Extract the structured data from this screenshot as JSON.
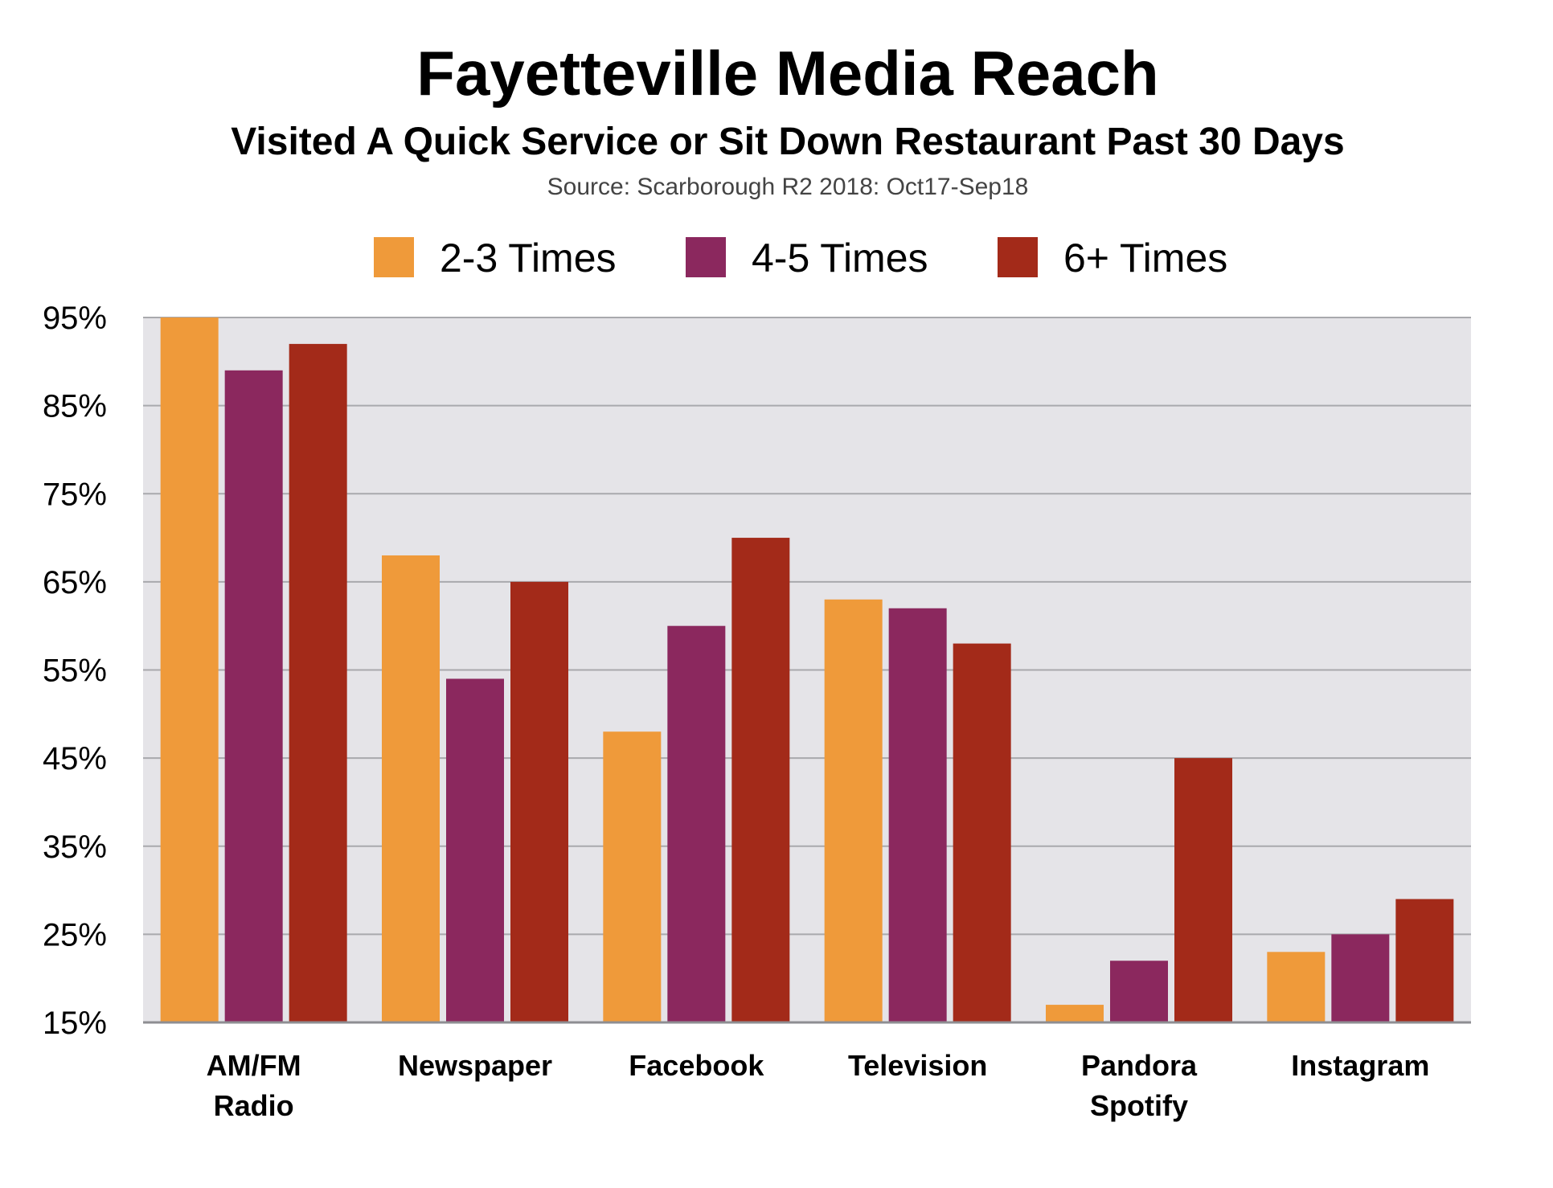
{
  "chart_data": {
    "type": "bar",
    "title": "Fayetteville Media Reach",
    "subtitle": "Visited A Quick Service or Sit Down Restaurant Past 30 Days",
    "source": "Source: Scarborough R2 2018: Oct17-Sep18",
    "categories": [
      [
        "AM/FM",
        "Radio"
      ],
      [
        "Newspaper"
      ],
      [
        "Facebook"
      ],
      [
        "Television"
      ],
      [
        "Pandora",
        "Spotify"
      ],
      [
        "Instagram"
      ]
    ],
    "series": [
      {
        "name": "2-3 Times",
        "color": "#EF9A3A",
        "values": [
          95,
          68,
          48,
          63,
          17,
          23
        ]
      },
      {
        "name": "4-5 Times",
        "color": "#8B285E",
        "values": [
          89,
          54,
          60,
          62,
          22,
          25
        ]
      },
      {
        "name": "6+ Times",
        "color": "#A32A19",
        "values": [
          92,
          65,
          70,
          58,
          45,
          29
        ]
      }
    ],
    "ylim": [
      15,
      95
    ],
    "yticks": [
      95,
      85,
      75,
      65,
      55,
      45,
      35,
      25,
      15
    ],
    "ytick_labels": [
      "95%",
      "85%",
      "75%",
      "65%",
      "55%",
      "45%",
      "35%",
      "25%",
      "15%"
    ],
    "grid": true,
    "legend_position": "top-center",
    "plot_background": "#E5E4E8"
  }
}
